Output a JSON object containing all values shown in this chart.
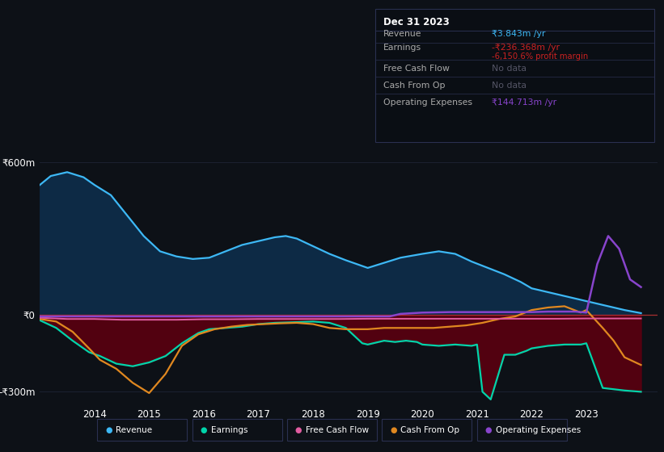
{
  "bg_color": "#0d1117",
  "plot_bg_color": "#0d1117",
  "grid_color": "#1e2535",
  "zero_line_color": "#cc3333",
  "ylim": [
    -350,
    650
  ],
  "xlim": [
    2013.0,
    2024.3
  ],
  "yticks": [
    -300,
    0,
    600
  ],
  "ytick_labels": [
    "-₹300m",
    "₹0",
    "₹600m"
  ],
  "xticks": [
    2014,
    2015,
    2016,
    2017,
    2018,
    2019,
    2020,
    2021,
    2022,
    2023
  ],
  "revenue_color": "#3db8f5",
  "revenue_fill_color": "#0d2a45",
  "earnings_color": "#00d4aa",
  "earnings_fill_color": "#5a0010",
  "cashflow_color": "#e05ca0",
  "cashop_color": "#e08820",
  "opex_color": "#8844cc",
  "revenue": {
    "x": [
      2013.0,
      2013.2,
      2013.5,
      2013.8,
      2014.0,
      2014.3,
      2014.6,
      2014.9,
      2015.2,
      2015.5,
      2015.8,
      2016.1,
      2016.4,
      2016.7,
      2017.0,
      2017.3,
      2017.5,
      2017.7,
      2018.0,
      2018.3,
      2018.6,
      2019.0,
      2019.3,
      2019.6,
      2020.0,
      2020.3,
      2020.6,
      2020.9,
      2021.2,
      2021.5,
      2021.8,
      2022.0,
      2022.3,
      2022.6,
      2022.9,
      2023.0,
      2023.3,
      2023.7,
      2024.0
    ],
    "y": [
      510,
      545,
      560,
      540,
      510,
      470,
      390,
      310,
      250,
      230,
      220,
      225,
      250,
      275,
      290,
      305,
      310,
      300,
      270,
      240,
      215,
      185,
      205,
      225,
      240,
      250,
      240,
      210,
      185,
      160,
      130,
      105,
      90,
      75,
      60,
      55,
      40,
      20,
      8
    ]
  },
  "earnings": {
    "x": [
      2013.0,
      2013.3,
      2013.6,
      2013.9,
      2014.1,
      2014.4,
      2014.7,
      2015.0,
      2015.3,
      2015.6,
      2015.9,
      2016.1,
      2016.4,
      2016.7,
      2017.0,
      2017.3,
      2017.6,
      2018.0,
      2018.3,
      2018.6,
      2018.9,
      2019.0,
      2019.3,
      2019.5,
      2019.7,
      2019.9,
      2020.0,
      2020.3,
      2020.6,
      2020.9,
      2021.0,
      2021.1,
      2021.25,
      2021.5,
      2021.7,
      2021.9,
      2022.0,
      2022.3,
      2022.6,
      2022.9,
      2023.0,
      2023.3,
      2023.7,
      2024.0
    ],
    "y": [
      -20,
      -50,
      -100,
      -145,
      -160,
      -190,
      -200,
      -185,
      -160,
      -110,
      -70,
      -55,
      -50,
      -45,
      -35,
      -30,
      -28,
      -25,
      -30,
      -50,
      -110,
      -115,
      -100,
      -105,
      -100,
      -105,
      -115,
      -120,
      -115,
      -120,
      -115,
      -300,
      -330,
      -155,
      -155,
      -140,
      -130,
      -120,
      -115,
      -115,
      -110,
      -285,
      -295,
      -300
    ]
  },
  "cashflow": {
    "x": [
      2013.0,
      2013.5,
      2014.0,
      2014.5,
      2015.0,
      2015.5,
      2016.0,
      2016.5,
      2017.0,
      2017.5,
      2018.0,
      2018.5,
      2019.0,
      2019.5,
      2020.0,
      2020.5,
      2021.0,
      2021.5,
      2022.0,
      2022.5,
      2023.0,
      2023.5,
      2024.0
    ],
    "y": [
      -10,
      -15,
      -15,
      -18,
      -18,
      -18,
      -16,
      -16,
      -15,
      -15,
      -15,
      -15,
      -14,
      -14,
      -14,
      -14,
      -14,
      -14,
      -14,
      -14,
      -13,
      -13,
      -13
    ]
  },
  "cashop": {
    "x": [
      2013.0,
      2013.3,
      2013.6,
      2013.9,
      2014.1,
      2014.4,
      2014.7,
      2015.0,
      2015.3,
      2015.6,
      2015.9,
      2016.2,
      2016.5,
      2016.8,
      2017.1,
      2017.4,
      2017.7,
      2018.0,
      2018.3,
      2018.6,
      2019.0,
      2019.3,
      2019.6,
      2019.9,
      2020.2,
      2020.5,
      2020.8,
      2021.1,
      2021.4,
      2021.7,
      2022.0,
      2022.3,
      2022.6,
      2022.9,
      2023.0,
      2023.3,
      2023.5,
      2023.7,
      2024.0
    ],
    "y": [
      -15,
      -25,
      -65,
      -130,
      -175,
      -210,
      -265,
      -305,
      -230,
      -120,
      -75,
      -55,
      -45,
      -38,
      -35,
      -32,
      -30,
      -35,
      -50,
      -55,
      -55,
      -50,
      -50,
      -50,
      -50,
      -45,
      -40,
      -30,
      -15,
      -5,
      20,
      30,
      35,
      10,
      20,
      -50,
      -100,
      -165,
      -195
    ]
  },
  "opex": {
    "x": [
      2013.0,
      2014.0,
      2015.0,
      2016.0,
      2017.0,
      2018.0,
      2019.0,
      2019.4,
      2019.6,
      2020.0,
      2020.5,
      2021.0,
      2021.5,
      2022.0,
      2022.3,
      2022.5,
      2022.8,
      2023.0,
      2023.2,
      2023.4,
      2023.6,
      2023.8,
      2024.0
    ],
    "y": [
      -5,
      -5,
      -5,
      -5,
      -5,
      -5,
      -5,
      -5,
      5,
      10,
      12,
      12,
      12,
      12,
      14,
      14,
      14,
      10,
      200,
      310,
      260,
      140,
      110
    ]
  },
  "info_box": {
    "title": "Dec 31 2023",
    "rows": [
      {
        "label": "Revenue",
        "value": "₹3.843m /yr",
        "value_color": "#3db8f5",
        "extra": null,
        "extra_color": null
      },
      {
        "label": "Earnings",
        "value": "-₹236.368m /yr",
        "value_color": "#cc2222",
        "extra": "-6,150.6% profit margin",
        "extra_color": "#cc2222"
      },
      {
        "label": "Free Cash Flow",
        "value": "No data",
        "value_color": "#555566",
        "extra": null,
        "extra_color": null
      },
      {
        "label": "Cash From Op",
        "value": "No data",
        "value_color": "#555566",
        "extra": null,
        "extra_color": null
      },
      {
        "label": "Operating Expenses",
        "value": "₹144.713m /yr",
        "value_color": "#8844cc",
        "extra": null,
        "extra_color": null
      }
    ]
  },
  "legend": [
    {
      "label": "Revenue",
      "color": "#3db8f5"
    },
    {
      "label": "Earnings",
      "color": "#00d4aa"
    },
    {
      "label": "Free Cash Flow",
      "color": "#e05ca0"
    },
    {
      "label": "Cash From Op",
      "color": "#e08820"
    },
    {
      "label": "Operating Expenses",
      "color": "#8844cc"
    }
  ]
}
